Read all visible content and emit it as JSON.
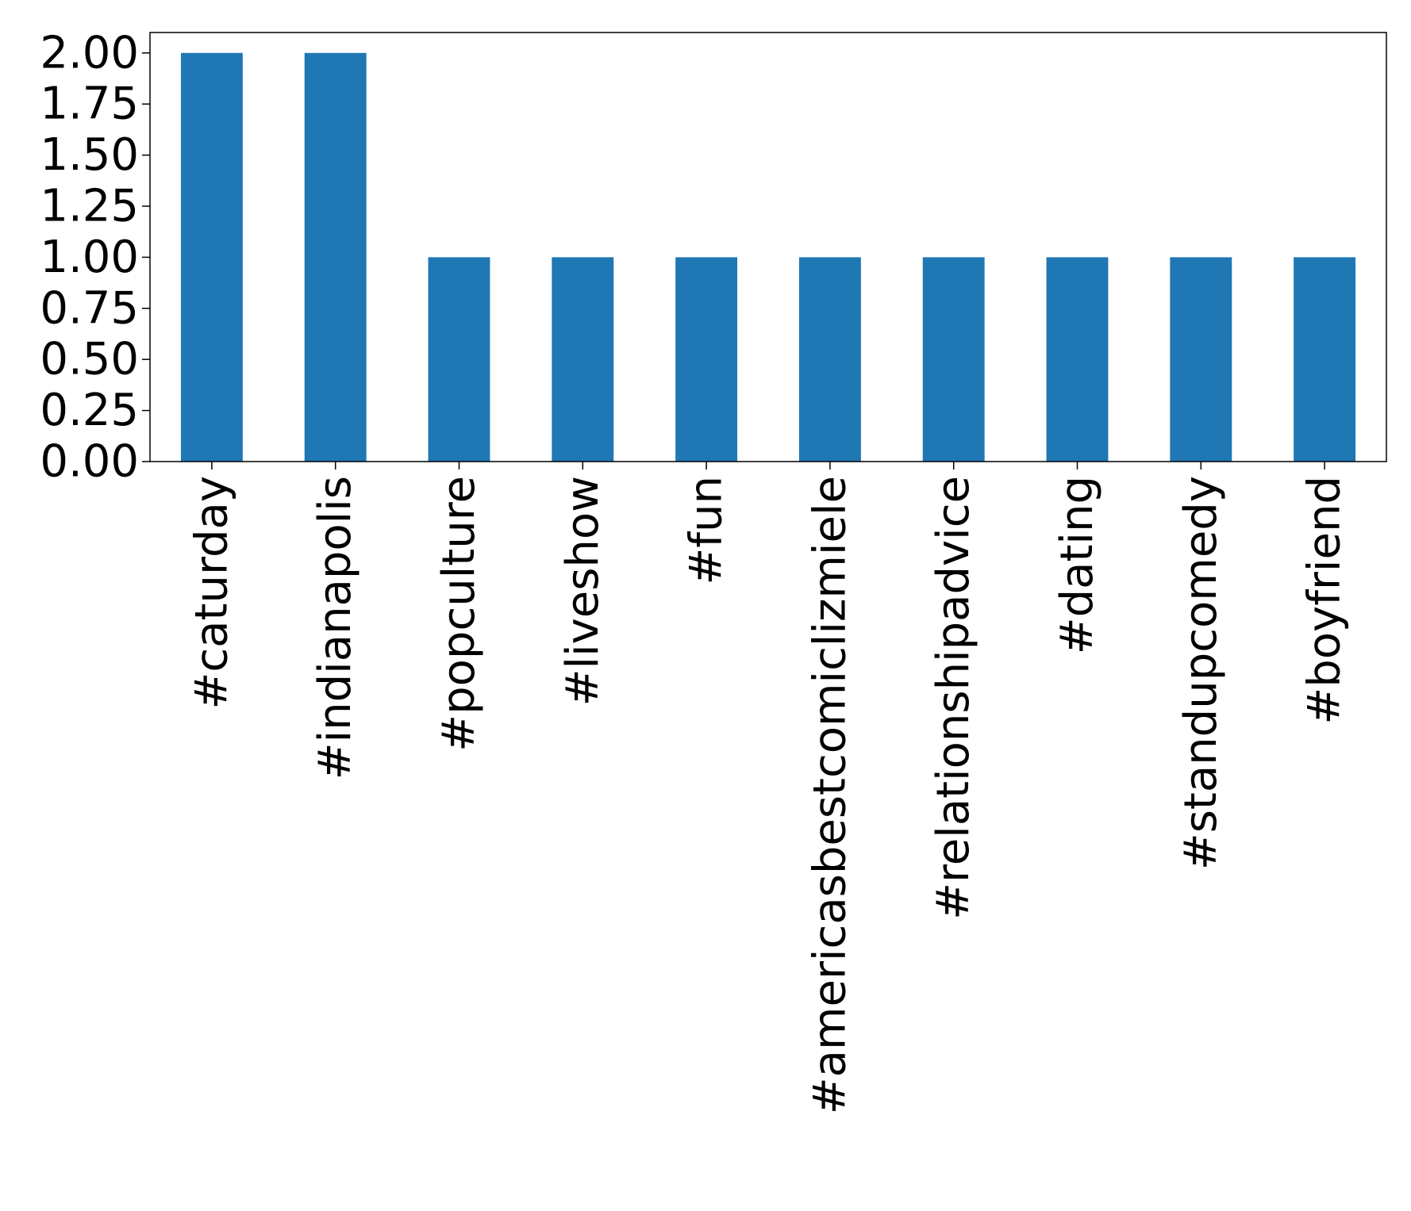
{
  "colors": {
    "bar": "#1f77b4",
    "axis": "#000000",
    "background": "#ffffff"
  },
  "chart_data": {
    "type": "bar",
    "title": "",
    "xlabel": "",
    "ylabel": "",
    "ylim": [
      0,
      2.1
    ],
    "grid": false,
    "legend": "none",
    "categories": [
      "#caturday",
      "#indianapolis",
      "#popculture",
      "#liveshow",
      "#fun",
      "#americasbestcomiclizmiele",
      "#relationshipadvice",
      "#dating",
      "#standupcomedy",
      "#boyfriend"
    ],
    "values": [
      2,
      2,
      1,
      1,
      1,
      1,
      1,
      1,
      1,
      1
    ],
    "y_ticks": [
      0,
      0.25,
      0.5,
      0.75,
      1.0,
      1.25,
      1.5,
      1.75,
      2.0
    ],
    "y_tick_labels": [
      "0.00",
      "0.25",
      "0.50",
      "0.75",
      "1.00",
      "1.25",
      "1.50",
      "1.75",
      "2.00"
    ]
  }
}
